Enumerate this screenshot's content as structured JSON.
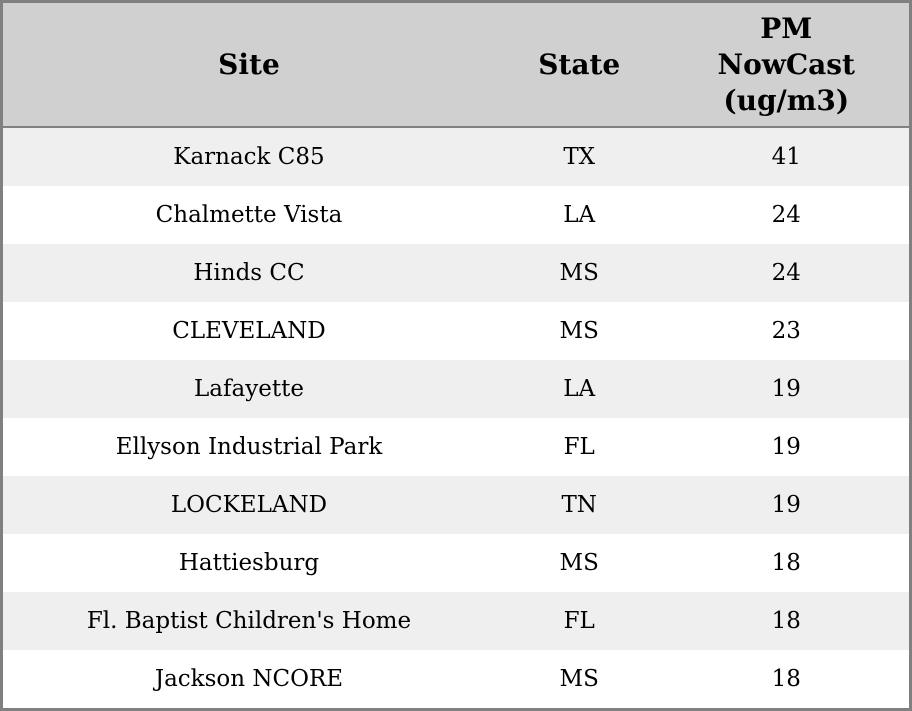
{
  "colors": {
    "header_bg": "#d0d0d0",
    "row_alt_bg": "#efefef",
    "row_bg": "#ffffff",
    "border": "#808080",
    "text": "#000000"
  },
  "chart_data": {
    "type": "table",
    "title": "",
    "columns": [
      "Site",
      "State",
      "PM NowCast (ug/m3)"
    ],
    "rows": [
      [
        "Karnack C85",
        "TX",
        41
      ],
      [
        "Chalmette Vista",
        "LA",
        24
      ],
      [
        "Hinds CC",
        "MS",
        24
      ],
      [
        "CLEVELAND",
        "MS",
        23
      ],
      [
        "Lafayette",
        "LA",
        19
      ],
      [
        "Ellyson Industrial Park",
        "FL",
        19
      ],
      [
        "LOCKELAND",
        "TN",
        19
      ],
      [
        "Hattiesburg",
        "MS",
        18
      ],
      [
        "Fl. Baptist Children's Home",
        "FL",
        18
      ],
      [
        "Jackson NCORE",
        "MS",
        18
      ]
    ],
    "layout": {
      "grid": "none",
      "column_alignment": "center",
      "alternating_row_shading": true
    }
  }
}
